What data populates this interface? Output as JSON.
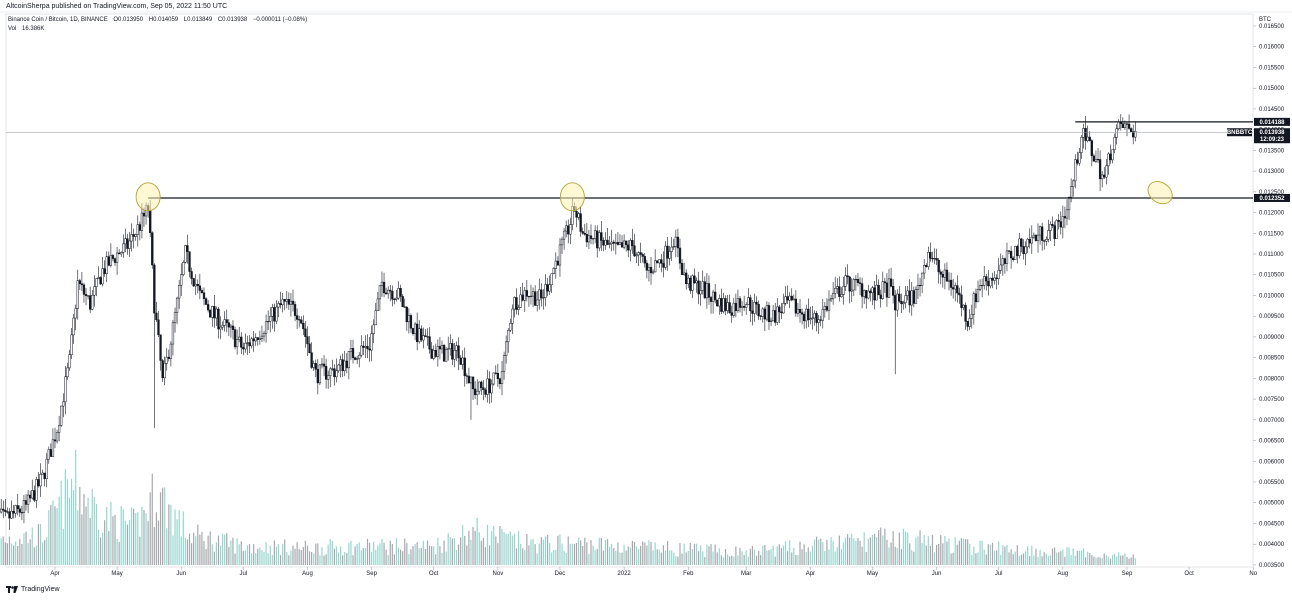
{
  "header": {
    "publisher_line": "AltcoinSherpa published on TradingView.com, Sep 05, 2022 11:50 UTC"
  },
  "symbol_info": {
    "name": "Binance Coin / Bitcoin, 1D, BINANCE",
    "open": "O0.013950",
    "high": "H0.014059",
    "low": "L0.013849",
    "close": "C0.013938",
    "change": "−0.000011 (−0.08%)",
    "volume_label": "Vol",
    "volume_value": "16.386K"
  },
  "footer": {
    "brand": "TradingView"
  },
  "colors": {
    "candle": "#131722",
    "volume": "#3fb5a9",
    "volume_dark": "#5d606b",
    "line": "#131722",
    "ellipse_fill": "#fff3b0",
    "ellipse_stroke": "#b7a336"
  },
  "chart_data": {
    "type": "candlestick",
    "axis_unit": "BTC",
    "y_range": [
      0.00345,
      0.01679
    ],
    "y_ticks": [
      "0.016500",
      "0.016000",
      "0.015500",
      "0.015000",
      "0.014500",
      "0.014000",
      "0.013500",
      "0.013000",
      "0.012500",
      "0.012000",
      "0.011500",
      "0.011000",
      "0.010500",
      "0.010000",
      "0.009500",
      "0.009000",
      "0.008500",
      "0.008000",
      "0.007500",
      "0.007000",
      "0.006500",
      "0.006000",
      "0.005500",
      "0.005000",
      "0.004500",
      "0.004000",
      "0.003500"
    ],
    "x_ticks": [
      "Apr",
      "May",
      "Jun",
      "Jul",
      "Aug",
      "Sep",
      "Oct",
      "Nov",
      "Dec",
      "2022",
      "Feb",
      "Mar",
      "Apr",
      "May",
      "Jun",
      "Jul",
      "Aug",
      "Sep",
      "Oct",
      "No"
    ],
    "x_tick_dates": [
      "2021-04-01",
      "2021-05-01",
      "2021-06-01",
      "2021-07-01",
      "2021-08-01",
      "2021-09-01",
      "2021-10-01",
      "2021-11-01",
      "2021-12-01",
      "2022-01-01",
      "2022-02-01",
      "2022-03-01",
      "2022-04-01",
      "2022-05-01",
      "2022-06-01",
      "2022-07-01",
      "2022-08-01",
      "2022-09-01",
      "2022-10-01",
      "2022-11-01"
    ],
    "price_path": [
      [
        "2021-03-01",
        0.0048
      ],
      [
        "2021-03-08",
        0.0046
      ],
      [
        "2021-03-18",
        0.0049
      ],
      [
        "2021-03-26",
        0.0056
      ],
      [
        "2021-04-02",
        0.0068
      ],
      [
        "2021-04-08",
        0.0084
      ],
      [
        "2021-04-12",
        0.0103
      ],
      [
        "2021-04-18",
        0.0098
      ],
      [
        "2021-04-24",
        0.0106
      ],
      [
        "2021-05-01",
        0.011
      ],
      [
        "2021-05-06",
        0.0112
      ],
      [
        "2021-05-12",
        0.0117
      ],
      [
        "2021-05-16",
        0.0121
      ],
      [
        "2021-05-19",
        0.0098
      ],
      [
        "2021-05-23",
        0.0079
      ],
      [
        "2021-05-28",
        0.0092
      ],
      [
        "2021-06-03",
        0.011
      ],
      [
        "2021-06-10",
        0.01
      ],
      [
        "2021-06-17",
        0.0095
      ],
      [
        "2021-06-25",
        0.0091
      ],
      [
        "2021-07-01",
        0.0087
      ],
      [
        "2021-07-10",
        0.0092
      ],
      [
        "2021-07-20",
        0.0098
      ],
      [
        "2021-07-28",
        0.0096
      ],
      [
        "2021-08-05",
        0.0081
      ],
      [
        "2021-08-15",
        0.0082
      ],
      [
        "2021-08-23",
        0.0086
      ],
      [
        "2021-08-31",
        0.0088
      ],
      [
        "2021-09-06",
        0.0103
      ],
      [
        "2021-09-14",
        0.01
      ],
      [
        "2021-09-22",
        0.0091
      ],
      [
        "2021-09-30",
        0.0087
      ],
      [
        "2021-10-06",
        0.0086
      ],
      [
        "2021-10-13",
        0.0087
      ],
      [
        "2021-10-20",
        0.0077
      ],
      [
        "2021-10-27",
        0.0078
      ],
      [
        "2021-11-03",
        0.0081
      ],
      [
        "2021-11-08",
        0.0098
      ],
      [
        "2021-11-15",
        0.0101
      ],
      [
        "2021-11-22",
        0.0099
      ],
      [
        "2021-11-29",
        0.0108
      ],
      [
        "2021-12-05",
        0.0116
      ],
      [
        "2021-12-08",
        0.0121
      ],
      [
        "2021-12-12",
        0.0115
      ],
      [
        "2021-12-20",
        0.0113
      ],
      [
        "2021-12-28",
        0.0111
      ],
      [
        "2022-01-05",
        0.0112
      ],
      [
        "2022-01-12",
        0.0106
      ],
      [
        "2022-01-20",
        0.0109
      ],
      [
        "2022-01-25",
        0.0114
      ],
      [
        "2022-01-31",
        0.0103
      ],
      [
        "2022-02-07",
        0.0102
      ],
      [
        "2022-02-14",
        0.0099
      ],
      [
        "2022-02-21",
        0.0097
      ],
      [
        "2022-02-28",
        0.0099
      ],
      [
        "2022-03-07",
        0.0096
      ],
      [
        "2022-03-14",
        0.0095
      ],
      [
        "2022-03-21",
        0.0098
      ],
      [
        "2022-03-28",
        0.0096
      ],
      [
        "2022-04-04",
        0.0094
      ],
      [
        "2022-04-11",
        0.0099
      ],
      [
        "2022-04-18",
        0.0103
      ],
      [
        "2022-04-25",
        0.0102
      ],
      [
        "2022-05-02",
        0.01
      ],
      [
        "2022-05-09",
        0.0102
      ],
      [
        "2022-05-12",
        0.0098
      ],
      [
        "2022-05-16",
        0.0099
      ],
      [
        "2022-05-22",
        0.01
      ],
      [
        "2022-05-28",
        0.0111
      ],
      [
        "2022-06-03",
        0.0105
      ],
      [
        "2022-06-10",
        0.0102
      ],
      [
        "2022-06-16",
        0.0094
      ],
      [
        "2022-06-22",
        0.0103
      ],
      [
        "2022-06-30",
        0.0105
      ],
      [
        "2022-07-07",
        0.011
      ],
      [
        "2022-07-15",
        0.0113
      ],
      [
        "2022-07-22",
        0.0115
      ],
      [
        "2022-07-29",
        0.0116
      ],
      [
        "2022-08-03",
        0.0121
      ],
      [
        "2022-08-06",
        0.0128
      ],
      [
        "2022-08-10",
        0.0139
      ],
      [
        "2022-08-14",
        0.0136
      ],
      [
        "2022-08-21",
        0.0128
      ],
      [
        "2022-08-25",
        0.0137
      ],
      [
        "2022-08-29",
        0.0141
      ],
      [
        "2022-09-05",
        0.01394
      ]
    ],
    "volume_path": [
      [
        "2021-03-01",
        0.3
      ],
      [
        "2021-03-26",
        0.35
      ],
      [
        "2021-04-10",
        0.95
      ],
      [
        "2021-04-25",
        0.55
      ],
      [
        "2021-05-10",
        0.45
      ],
      [
        "2021-05-20",
        0.85
      ],
      [
        "2021-06-05",
        0.35
      ],
      [
        "2021-07-01",
        0.22
      ],
      [
        "2021-08-01",
        0.2
      ],
      [
        "2021-09-01",
        0.22
      ],
      [
        "2021-10-01",
        0.22
      ],
      [
        "2021-10-20",
        0.4
      ],
      [
        "2021-11-15",
        0.25
      ],
      [
        "2021-12-10",
        0.25
      ],
      [
        "2022-01-15",
        0.2
      ],
      [
        "2022-03-01",
        0.15
      ],
      [
        "2022-05-12",
        0.32
      ],
      [
        "2022-06-15",
        0.22
      ],
      [
        "2022-08-01",
        0.15
      ],
      [
        "2022-09-05",
        0.1
      ]
    ],
    "series": [
      {
        "name": "BNBBTC",
        "last": "0.013938",
        "countdown": "12:09:23"
      }
    ],
    "horizontal_levels": [
      {
        "name": "resistance-support",
        "value": 0.012352,
        "label": "0.012352",
        "start": "2021-05-16"
      },
      {
        "name": "recent-high",
        "value": 0.014188,
        "label": "0.014188",
        "start": "2022-08-07"
      }
    ],
    "highlight_ellipses": [
      {
        "date": "2021-05-16",
        "value": 0.01238
      },
      {
        "date": "2021-12-07",
        "value": 0.01238
      },
      {
        "date": "2022-09-17",
        "value": 0.01248
      }
    ]
  }
}
